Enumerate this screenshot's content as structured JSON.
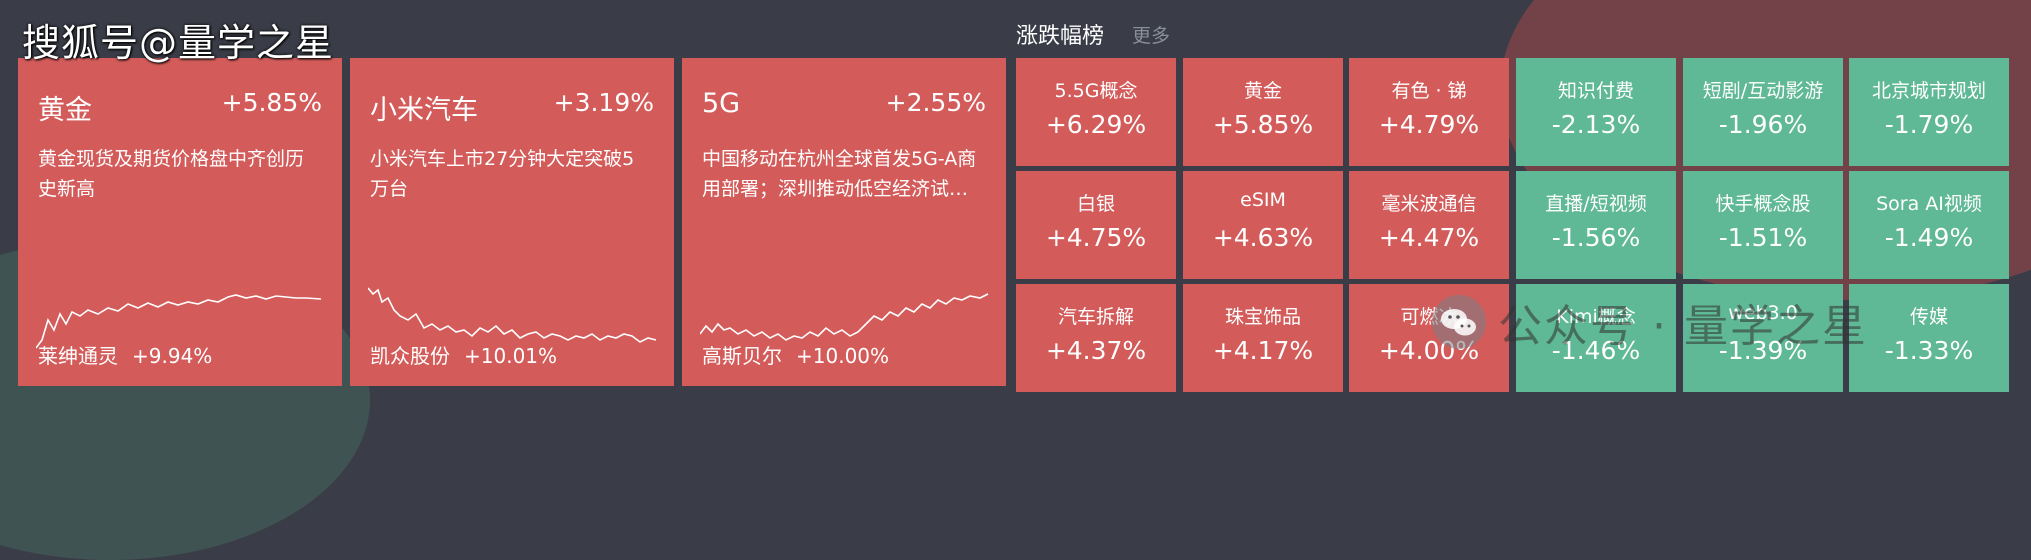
{
  "watermark_top": "搜狐号@量学之星",
  "section": {
    "title": "涨跌幅榜",
    "more": "更多"
  },
  "cards": [
    {
      "name": "黄金",
      "pct": "+5.85%",
      "news": "黄金现货及期货价格盘中齐创历史新高",
      "stock_name": "莱绅通灵",
      "stock_pct": "+9.94%"
    },
    {
      "name": "小米汽车",
      "pct": "+3.19%",
      "news": "小米汽车上市27分钟大定突破5万台",
      "stock_name": "凯众股份",
      "stock_pct": "+10.01%"
    },
    {
      "name": "5G",
      "pct": "+2.55%",
      "news": "中国移动在杭州全球首发5G-A商用部署；深圳推动低空经济试…",
      "stock_name": "高斯贝尔",
      "stock_pct": "+10.00%"
    }
  ],
  "tiles": [
    {
      "name": "5.5G概念",
      "pct": "+6.29%",
      "dir": "up"
    },
    {
      "name": "黄金",
      "pct": "+5.85%",
      "dir": "up"
    },
    {
      "name": "有色 · 锑",
      "pct": "+4.79%",
      "dir": "up"
    },
    {
      "name": "知识付费",
      "pct": "-2.13%",
      "dir": "down"
    },
    {
      "name": "短剧/互动影游",
      "pct": "-1.96%",
      "dir": "down"
    },
    {
      "name": "北京城市规划",
      "pct": "-1.79%",
      "dir": "down"
    },
    {
      "name": "白银",
      "pct": "+4.75%",
      "dir": "up"
    },
    {
      "name": "eSIM",
      "pct": "+4.63%",
      "dir": "up"
    },
    {
      "name": "毫米波通信",
      "pct": "+4.47%",
      "dir": "up"
    },
    {
      "name": "直播/短视频",
      "pct": "-1.56%",
      "dir": "down"
    },
    {
      "name": "快手概念股",
      "pct": "-1.51%",
      "dir": "down"
    },
    {
      "name": "Sora AI视频",
      "pct": "-1.49%",
      "dir": "down"
    },
    {
      "name": "汽车拆解",
      "pct": "+4.37%",
      "dir": "up"
    },
    {
      "name": "珠宝饰品",
      "pct": "+4.17%",
      "dir": "up"
    },
    {
      "name": "可燃冰",
      "pct": "+4.00%",
      "dir": "up"
    },
    {
      "name": "Kimi概念",
      "pct": "-1.46%",
      "dir": "down"
    },
    {
      "name": "web3.0",
      "pct": "-1.39%",
      "dir": "down"
    },
    {
      "name": "传媒",
      "pct": "-1.33%",
      "dir": "down"
    }
  ],
  "colors": {
    "up": "#d35c5b",
    "down": "#5fb896",
    "background": "#3a3d47"
  },
  "watermark_bottom": "公众号 · 量学之星",
  "icons": {
    "wechat": "wechat-icon"
  }
}
